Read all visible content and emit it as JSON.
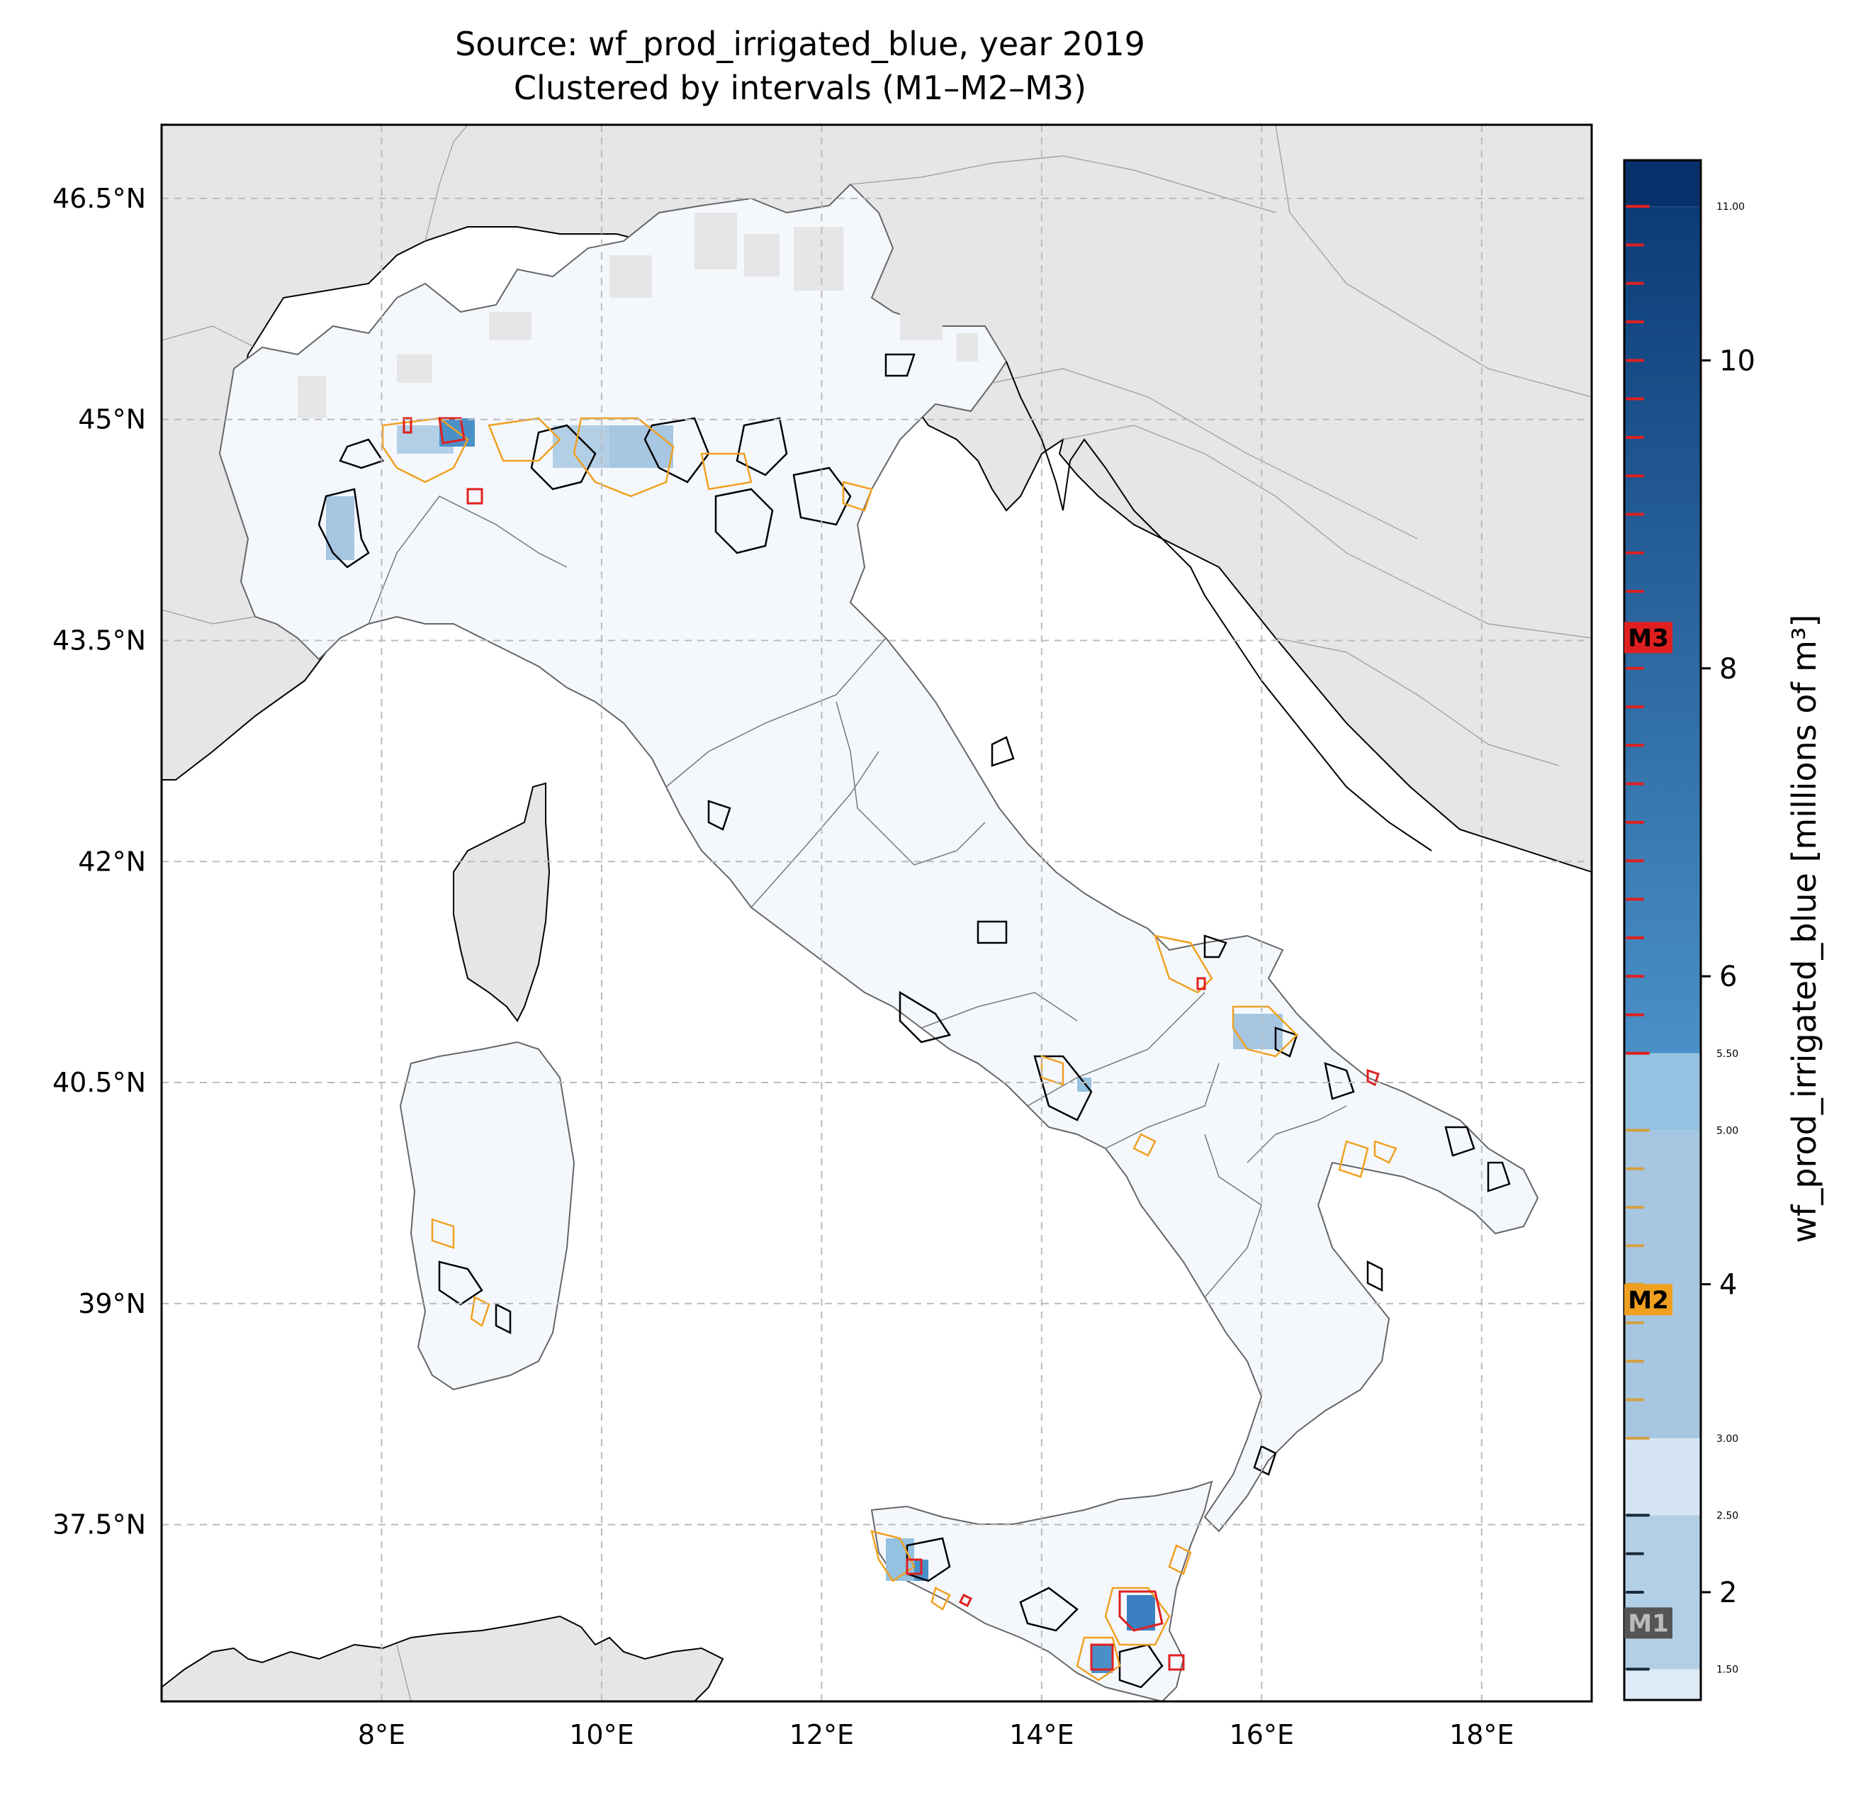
{
  "title_line1": "Source: wf_prod_irrigated_blue, year 2019",
  "title_line2": "Clustered by intervals (M1–M2–M3)",
  "map": {
    "extent_lon": [
      6.0,
      19.0
    ],
    "extent_lat": [
      36.3,
      47.0
    ],
    "lat_ticks": [
      {
        "value": 46.5,
        "label": "46.5°N"
      },
      {
        "value": 45.0,
        "label": "45°N"
      },
      {
        "value": 43.5,
        "label": "43.5°N"
      },
      {
        "value": 42.0,
        "label": "42°N"
      },
      {
        "value": 40.5,
        "label": "40.5°N"
      },
      {
        "value": 39.0,
        "label": "39°N"
      },
      {
        "value": 37.5,
        "label": "37.5°N"
      }
    ],
    "lon_ticks": [
      {
        "value": 8,
        "label": "8°E"
      },
      {
        "value": 10,
        "label": "10°E"
      },
      {
        "value": 12,
        "label": "12°E"
      },
      {
        "value": 14,
        "label": "14°E"
      },
      {
        "value": 16,
        "label": "16°E"
      },
      {
        "value": 18,
        "label": "18°E"
      }
    ],
    "grid": true,
    "colors": {
      "ocean": "#ffffff",
      "land_outside": "#e6e6e6",
      "italy_fill": "#f4f8fd",
      "cluster_m1": "#000000",
      "cluster_m2": "#f0a020",
      "cluster_m3": "#e02020"
    }
  },
  "colorbar": {
    "label": "wf_prod_irrigated_blue [millions of m³]",
    "range": [
      1.3,
      11.3
    ],
    "major_ticks": [
      {
        "value": 2,
        "label": "2"
      },
      {
        "value": 4,
        "label": "4"
      },
      {
        "value": 6,
        "label": "6"
      },
      {
        "value": 8,
        "label": "8"
      },
      {
        "value": 10,
        "label": "10"
      }
    ],
    "minor_ticks": [
      {
        "value": 1.5,
        "label": "1.50"
      },
      {
        "value": 2.5,
        "label": "2.50"
      },
      {
        "value": 3.0,
        "label": "3.00"
      },
      {
        "value": 5.0,
        "label": "5.00"
      },
      {
        "value": 5.5,
        "label": "5.50"
      },
      {
        "value": 11.0,
        "label": "11.00"
      }
    ],
    "bands": [
      {
        "from": 1.3,
        "to": 1.5,
        "color": "#deebf7"
      },
      {
        "from": 1.5,
        "to": 2.5,
        "color": "#b3cfe6"
      },
      {
        "from": 2.5,
        "to": 3.0,
        "color": "#d6e5f4"
      },
      {
        "from": 3.0,
        "to": 5.0,
        "color": "#a6c6e1"
      },
      {
        "from": 5.0,
        "to": 5.5,
        "color": "#94c2e0"
      },
      {
        "from": 5.5,
        "to": 11.0,
        "gradient": [
          "#4a90c8",
          "#0c3c78"
        ]
      },
      {
        "from": 11.0,
        "to": 11.3,
        "color": "#08306b"
      }
    ],
    "clusters": [
      {
        "name": "M1",
        "value": 1.8,
        "color": "#555555",
        "text_color": "#bbbbbb"
      },
      {
        "name": "M2",
        "value": 3.9,
        "color": "#f0a020",
        "text_color": "#000000"
      },
      {
        "name": "M3",
        "value": 8.2,
        "color": "#e02020",
        "text_color": "#000000"
      }
    ]
  }
}
